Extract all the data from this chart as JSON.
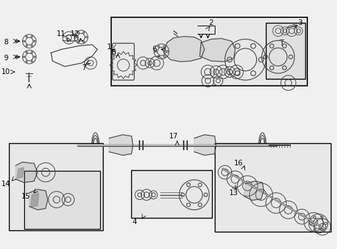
{
  "bg_color": "#f0f0f0",
  "white": "#ffffff",
  "black": "#000000",
  "gray": "#888888",
  "light_gray": "#d8d8d8",
  "dark_gray": "#444444",
  "fig_width": 4.89,
  "fig_height": 3.6,
  "dpi": 100
}
